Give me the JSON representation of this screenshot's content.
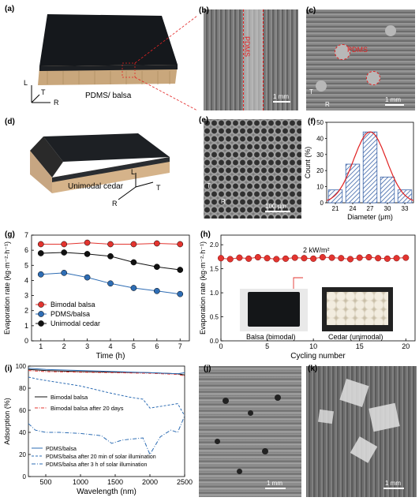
{
  "panels": {
    "a": {
      "label": "(a)",
      "caption": "PDMS/ balsa",
      "axes": [
        "L",
        "T",
        "R"
      ]
    },
    "b": {
      "label": "(b)",
      "annotation": "PDMS",
      "scale": "1 mm"
    },
    "c": {
      "label": "(c)",
      "annotation": "PDMS",
      "scale": "1 mm",
      "axes": [
        "T",
        "R"
      ]
    },
    "d": {
      "label": "(d)",
      "caption": "Unimodal cedar",
      "axes": [
        "L",
        "T",
        "R"
      ]
    },
    "e": {
      "label": "(e)",
      "scale": "100 μm",
      "axes": [
        "T",
        "R"
      ]
    },
    "f": {
      "label": "(f)"
    },
    "g": {
      "label": "(g)"
    },
    "h": {
      "label": "(h)",
      "photo_left": "Balsa (bimodal)",
      "photo_right": "Cedar (unimodal)"
    },
    "i": {
      "label": "(i)"
    },
    "j": {
      "label": "(j)",
      "scale": "1 mm"
    },
    "k": {
      "label": "(k)",
      "scale": "1 mm"
    }
  },
  "colors": {
    "red": "#e3342f",
    "blue": "#2e6db4",
    "black": "#111111",
    "hatch": "#3a63a8",
    "fit": "#e02020"
  },
  "chart_data": [
    {
      "id": "f",
      "type": "bar",
      "xlabel": "Diameter (μm)",
      "ylabel": "Count (%)",
      "categories": [
        "21",
        "24",
        "27",
        "30",
        "33"
      ],
      "values": [
        8,
        24,
        44,
        16,
        8
      ],
      "ylim": [
        0,
        50
      ],
      "yticks": [
        "0",
        "10",
        "20",
        "30",
        "40",
        "50"
      ],
      "fit": "gaussian"
    },
    {
      "id": "g",
      "type": "line",
      "xlabel": "Time (h)",
      "ylabel": "Evaporation rate (kg·m⁻²·h⁻¹)",
      "x": [
        1,
        2,
        3,
        4,
        5,
        6,
        7
      ],
      "xticks": [
        "1",
        "2",
        "3",
        "4",
        "5",
        "6",
        "7"
      ],
      "yticks": [
        "0",
        "1",
        "2",
        "3",
        "4",
        "5",
        "6",
        "7"
      ],
      "xlim": [
        0.6,
        7.4
      ],
      "ylim": [
        0,
        7
      ],
      "legend": "bottom-left",
      "series": [
        {
          "name": "Bimodal balsa",
          "values": [
            6.4,
            6.4,
            6.5,
            6.4,
            6.4,
            6.45,
            6.4
          ]
        },
        {
          "name": "PDMS/balsa",
          "values": [
            4.4,
            4.5,
            4.2,
            3.8,
            3.5,
            3.3,
            3.1
          ]
        },
        {
          "name": "Unimodal cedar",
          "values": [
            5.8,
            5.85,
            5.75,
            5.6,
            5.2,
            4.9,
            4.7
          ]
        }
      ]
    },
    {
      "id": "h",
      "type": "line",
      "xlabel": "Cycling number",
      "ylabel": "Evaporation rate (kg·m⁻²·h⁻¹)",
      "annotation": "2 kW/m²",
      "xticks": [
        "0",
        "5",
        "10",
        "15",
        "20"
      ],
      "yticks": [
        "0.0",
        "0.5",
        "1.0",
        "1.5",
        "2.0"
      ],
      "xlim": [
        0,
        21
      ],
      "ylim": [
        0,
        2.2
      ],
      "series": [
        {
          "values": [
            1.72,
            1.7,
            1.73,
            1.71,
            1.74,
            1.72,
            1.7,
            1.71,
            1.73,
            1.72,
            1.71,
            1.74,
            1.73,
            1.72,
            1.7,
            1.73,
            1.74,
            1.72,
            1.71,
            1.72,
            1.73
          ]
        }
      ]
    },
    {
      "id": "i",
      "type": "line",
      "xlabel": "Wavelength (nm)",
      "ylabel": "Adsorption (%)",
      "xticks": [
        "500",
        "1000",
        "1500",
        "2000",
        "2500"
      ],
      "yticks": [
        "0",
        "20",
        "40",
        "60",
        "80",
        "100"
      ],
      "xlim": [
        250,
        2500
      ],
      "ylim": [
        0,
        100
      ],
      "legend_top": [
        "Bimodal balsa",
        "Bimodal balsa after 20 days"
      ],
      "legend_bottom": [
        "PDMS/balsa",
        "PDMS/balsa after 20 min of solar illumination",
        "PDMS/balsa after 3 h of solar illumination"
      ],
      "series": [
        {
          "name": "Bimodal balsa",
          "x": [
            250,
            500,
            1000,
            1500,
            2000,
            2400,
            2500
          ],
          "values": [
            97,
            96,
            95,
            94.5,
            94,
            93,
            92
          ]
        },
        {
          "name": "Bimodal balsa after 20 days",
          "x": [
            250,
            500,
            1000,
            1500,
            2000,
            2400,
            2500
          ],
          "values": [
            96,
            95,
            94.5,
            94,
            93.5,
            92.5,
            91
          ]
        },
        {
          "name": "PDMS/balsa",
          "x": [
            250,
            500,
            1000,
            1500,
            2000,
            2400,
            2500
          ],
          "values": [
            98,
            97,
            96,
            95,
            94,
            93,
            94
          ]
        },
        {
          "name": "PDMS/balsa after 20 min of solar illumination",
          "x": [
            250,
            400,
            700,
            1000,
            1200,
            1400,
            1700,
            1900,
            2000,
            2200,
            2400,
            2500
          ],
          "values": [
            90,
            88,
            85,
            82,
            79,
            76,
            72,
            70,
            62,
            64,
            66,
            55
          ]
        },
        {
          "name": "PDMS/balsa after 3 h of solar illumination",
          "x": [
            250,
            350,
            500,
            700,
            1000,
            1300,
            1450,
            1600,
            1900,
            2000,
            2150,
            2300,
            2400,
            2500
          ],
          "values": [
            48,
            42,
            40,
            40,
            39,
            37,
            30,
            33,
            35,
            20,
            36,
            42,
            40,
            55
          ]
        }
      ]
    }
  ]
}
